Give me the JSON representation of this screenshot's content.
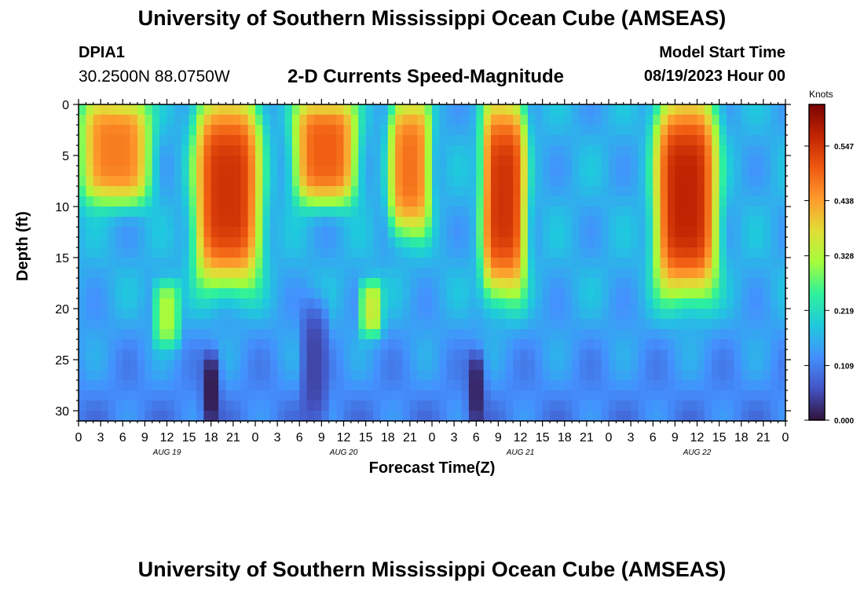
{
  "header": {
    "title": "University of Southern Mississippi Ocean Cube (AMSEAS)",
    "station": "DPIA1",
    "coords": "30.2500N  88.0750W",
    "subtitle": "2-D Currents Speed-Magnitude",
    "start_label": "Model Start Time",
    "start_value": "08/19/2023 Hour 00"
  },
  "footer": {
    "title": "University of Southern Mississippi Ocean Cube (AMSEAS)"
  },
  "chart_data": {
    "type": "heatmap",
    "title": "2-D Currents Speed-Magnitude",
    "xlabel": "Forecast Time(Z)",
    "ylabel": "Depth (ft)",
    "x_range_hours": [
      0,
      96
    ],
    "y_range_ft": [
      0,
      31
    ],
    "x_tick_labels": [
      "0",
      "3",
      "6",
      "9",
      "12",
      "15",
      "18",
      "21",
      "0",
      "3",
      "6",
      "9",
      "12",
      "15",
      "18",
      "21",
      "0",
      "3",
      "6",
      "9",
      "12",
      "15",
      "18",
      "21",
      "0",
      "3",
      "6",
      "9",
      "12",
      "15",
      "18",
      "21",
      "0"
    ],
    "day_labels": [
      {
        "label": "AUG 19",
        "hour": 12
      },
      {
        "label": "AUG 20",
        "hour": 36
      },
      {
        "label": "AUG 21",
        "hour": 60
      },
      {
        "label": "AUG 22",
        "hour": 84
      }
    ],
    "y_ticks": [
      0,
      5,
      10,
      15,
      20,
      25,
      30
    ],
    "colorbar": {
      "unit": "Knots",
      "min": 0.0,
      "max": 0.63,
      "ticks": [
        "0.000",
        "0.109",
        "0.219",
        "0.328",
        "0.438",
        "0.547"
      ],
      "tick_values": [
        0.0,
        0.109,
        0.219,
        0.328,
        0.438,
        0.547
      ]
    },
    "features": [
      {
        "type": "high",
        "x_hours": [
          1,
          9
        ],
        "depth_ft": [
          0,
          9
        ],
        "value": 0.47
      },
      {
        "type": "high",
        "x_hours": [
          16.5,
          24
        ],
        "depth_ft": [
          0,
          17
        ],
        "value": 0.55
      },
      {
        "type": "high",
        "x_hours": [
          30,
          37
        ],
        "depth_ft": [
          0,
          9
        ],
        "value": 0.5
      },
      {
        "type": "high",
        "x_hours": [
          43,
          47
        ],
        "depth_ft": [
          0,
          12
        ],
        "value": 0.48
      },
      {
        "type": "high",
        "x_hours": [
          55.5,
          60
        ],
        "depth_ft": [
          0,
          18
        ],
        "value": 0.55
      },
      {
        "type": "high",
        "x_hours": [
          79,
          86
        ],
        "depth_ft": [
          0,
          18
        ],
        "value": 0.57
      },
      {
        "type": "mid",
        "x_hours": [
          11,
          13
        ],
        "depth_ft": [
          18,
          23
        ],
        "value": 0.32
      },
      {
        "type": "mid",
        "x_hours": [
          39,
          40.5
        ],
        "depth_ft": [
          18,
          22
        ],
        "value": 0.35
      },
      {
        "type": "low",
        "x_hours": [
          17.5,
          18.5
        ],
        "depth_ft": [
          25,
          31
        ],
        "value": 0.01
      },
      {
        "type": "low",
        "x_hours": [
          53.5,
          54.5
        ],
        "depth_ft": [
          25,
          31
        ],
        "value": 0.02
      },
      {
        "type": "low",
        "x_hours": [
          31,
          33
        ],
        "depth_ft": [
          20,
          31
        ],
        "value": 0.05
      }
    ]
  }
}
